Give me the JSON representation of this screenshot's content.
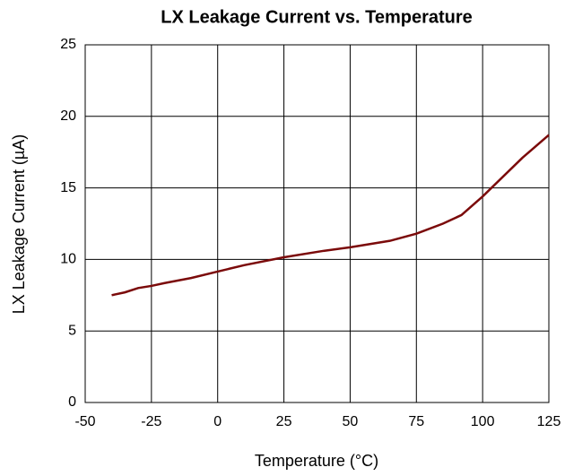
{
  "chart_data": {
    "type": "line",
    "title": "LX Leakage Current vs. Temperature",
    "x_label": "Temperature (°C)",
    "y_label": "LX Leakage Current (µA)",
    "x": [
      -40,
      -35,
      -30,
      -25,
      -20,
      -10,
      0,
      10,
      25,
      40,
      50,
      65,
      75,
      85,
      92,
      100,
      105,
      115,
      125
    ],
    "series": [
      {
        "name": "LX Leakage Current",
        "color": "#7b0a0a",
        "values": [
          7.5,
          7.7,
          8.0,
          8.15,
          8.35,
          8.7,
          9.15,
          9.6,
          10.15,
          10.6,
          10.85,
          11.3,
          11.8,
          12.5,
          13.1,
          14.4,
          15.3,
          17.1,
          18.7
        ]
      }
    ],
    "xlim": [
      -50,
      125
    ],
    "xticks": [
      -50,
      -25,
      0,
      25,
      50,
      75,
      100,
      125
    ],
    "ylim": [
      0,
      25
    ],
    "yticks": [
      0,
      5,
      10,
      15,
      20,
      25
    ],
    "grid": true
  }
}
